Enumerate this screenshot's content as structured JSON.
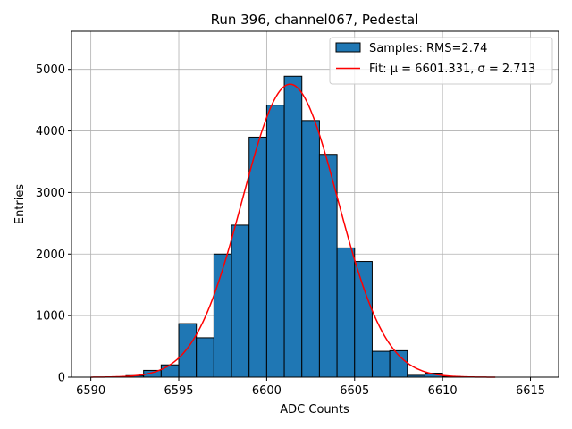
{
  "chart_data": {
    "type": "bar",
    "title": "Run 396, channel067, Pedestal",
    "xlabel": "ADC Counts",
    "ylabel": "Entries",
    "xlim": [
      6588.9,
      6616.6
    ],
    "ylim": [
      0,
      5620
    ],
    "xticks": [
      6590,
      6595,
      6600,
      6605,
      6610,
      6615
    ],
    "yticks": [
      0,
      1000,
      2000,
      3000,
      4000,
      5000
    ],
    "grid": true,
    "legend_position": "top-right",
    "bin_width": 1,
    "bins": [
      {
        "x0": 6592,
        "value": 25
      },
      {
        "x0": 6593,
        "value": 110
      },
      {
        "x0": 6594,
        "value": 200
      },
      {
        "x0": 6595,
        "value": 870
      },
      {
        "x0": 6596,
        "value": 640
      },
      {
        "x0": 6597,
        "value": 2000
      },
      {
        "x0": 6598,
        "value": 2470
      },
      {
        "x0": 6599,
        "value": 3900
      },
      {
        "x0": 6600,
        "value": 4420
      },
      {
        "x0": 6601,
        "value": 4890
      },
      {
        "x0": 6602,
        "value": 4170
      },
      {
        "x0": 6603,
        "value": 3620
      },
      {
        "x0": 6604,
        "value": 2100
      },
      {
        "x0": 6605,
        "value": 1880
      },
      {
        "x0": 6606,
        "value": 420
      },
      {
        "x0": 6607,
        "value": 430
      },
      {
        "x0": 6608,
        "value": 30
      },
      {
        "x0": 6609,
        "value": 65
      },
      {
        "x0": 6610,
        "value": 10
      }
    ],
    "fit": {
      "mu": 6601.331,
      "sigma": 2.713,
      "amplitude": 4760,
      "x_range": [
        6590,
        6613
      ]
    },
    "series": [
      {
        "name": "Samples: RMS=2.74",
        "kind": "histogram",
        "color": "#1f77b4"
      },
      {
        "name": "Fit: μ = 6601.331, σ = 2.713",
        "kind": "line",
        "color": "#ff0000"
      }
    ]
  }
}
